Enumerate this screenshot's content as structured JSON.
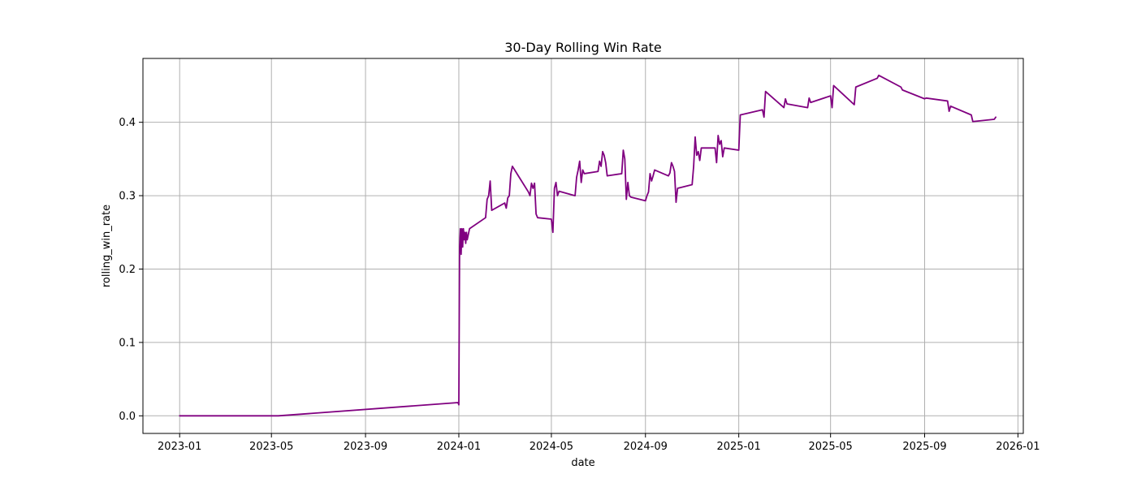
{
  "chart_data": {
    "type": "line",
    "title": "30-Day Rolling Win Rate",
    "xlabel": "date",
    "ylabel": "rolling_win_rate",
    "grid": true,
    "legend": "none",
    "xlim": [
      "2022-11-14",
      "2026-01-08"
    ],
    "ylim": [
      -0.024,
      0.487
    ],
    "x_ticks": [
      "2023-01-01",
      "2023-05-01",
      "2023-09-01",
      "2024-01-01",
      "2024-05-01",
      "2024-09-01",
      "2025-01-01",
      "2025-05-01",
      "2025-09-01",
      "2026-01-01"
    ],
    "x_tick_labels": [
      "2023-01",
      "2023-05",
      "2023-09",
      "2024-01",
      "2024-05",
      "2024-09",
      "2025-01",
      "2025-05",
      "2025-09",
      "2026-01"
    ],
    "y_ticks": [
      0.0,
      0.1,
      0.2,
      0.3,
      0.4
    ],
    "y_tick_labels": [
      "0.0",
      "0.1",
      "0.2",
      "0.3",
      "0.4"
    ],
    "colors": {
      "line": "#800080"
    },
    "series": [
      {
        "x": [
          "2023-01-01",
          "2023-05-10",
          "2023-12-31",
          "2024-01-01",
          "2024-01-02",
          "2024-01-03",
          "2024-01-04",
          "2024-01-05",
          "2024-01-06",
          "2024-01-07",
          "2024-01-08",
          "2024-01-09",
          "2024-01-10",
          "2024-01-11",
          "2024-01-12",
          "2024-01-13",
          "2024-01-15",
          "2024-02-05",
          "2024-02-07",
          "2024-02-09",
          "2024-02-11",
          "2024-02-13",
          "2024-03-01",
          "2024-03-03",
          "2024-03-05",
          "2024-03-07",
          "2024-03-09",
          "2024-03-11",
          "2024-04-01",
          "2024-04-03",
          "2024-04-05",
          "2024-04-07",
          "2024-04-09",
          "2024-04-11",
          "2024-04-13",
          "2024-05-01",
          "2024-05-03",
          "2024-05-05",
          "2024-05-07",
          "2024-05-09",
          "2024-05-11",
          "2024-06-01",
          "2024-06-03",
          "2024-06-05",
          "2024-06-07",
          "2024-06-09",
          "2024-06-11",
          "2024-06-13",
          "2024-07-01",
          "2024-07-03",
          "2024-07-05",
          "2024-07-07",
          "2024-07-09",
          "2024-07-11",
          "2024-07-13",
          "2024-08-01",
          "2024-08-03",
          "2024-08-05",
          "2024-08-07",
          "2024-08-09",
          "2024-08-11",
          "2024-08-13",
          "2024-09-01",
          "2024-09-03",
          "2024-09-05",
          "2024-09-07",
          "2024-09-09",
          "2024-09-11",
          "2024-09-13",
          "2024-10-01",
          "2024-10-03",
          "2024-10-05",
          "2024-10-07",
          "2024-10-09",
          "2024-10-11",
          "2024-10-13",
          "2024-11-01",
          "2024-11-03",
          "2024-11-05",
          "2024-11-07",
          "2024-11-09",
          "2024-11-11",
          "2024-11-13",
          "2024-12-01",
          "2024-12-03",
          "2024-12-05",
          "2024-12-07",
          "2024-12-09",
          "2024-12-11",
          "2024-12-13",
          "2025-01-01",
          "2025-01-03",
          "2025-02-01",
          "2025-02-03",
          "2025-02-05",
          "2025-03-01",
          "2025-03-03",
          "2025-03-05",
          "2025-04-01",
          "2025-04-03",
          "2025-04-05",
          "2025-05-01",
          "2025-05-03",
          "2025-05-05",
          "2025-06-01",
          "2025-06-03",
          "2025-07-01",
          "2025-07-03",
          "2025-08-01",
          "2025-08-03",
          "2025-09-01",
          "2025-09-03",
          "2025-10-01",
          "2025-10-03",
          "2025-10-05",
          "2025-11-01",
          "2025-11-03",
          "2025-12-01",
          "2025-12-03"
        ],
        "y": [
          0.0,
          0.0,
          0.018,
          0.015,
          0.23,
          0.255,
          0.22,
          0.255,
          0.23,
          0.255,
          0.24,
          0.25,
          0.235,
          0.25,
          0.24,
          0.245,
          0.255,
          0.27,
          0.295,
          0.3,
          0.32,
          0.28,
          0.29,
          0.283,
          0.297,
          0.3,
          0.33,
          0.34,
          0.305,
          0.3,
          0.317,
          0.31,
          0.317,
          0.275,
          0.27,
          0.268,
          0.25,
          0.31,
          0.318,
          0.3,
          0.306,
          0.3,
          0.325,
          0.335,
          0.347,
          0.318,
          0.335,
          0.33,
          0.333,
          0.347,
          0.34,
          0.36,
          0.355,
          0.345,
          0.327,
          0.33,
          0.362,
          0.35,
          0.295,
          0.318,
          0.3,
          0.298,
          0.293,
          0.3,
          0.305,
          0.33,
          0.32,
          0.327,
          0.335,
          0.327,
          0.331,
          0.345,
          0.34,
          0.333,
          0.291,
          0.31,
          0.315,
          0.34,
          0.38,
          0.355,
          0.36,
          0.348,
          0.365,
          0.365,
          0.345,
          0.382,
          0.37,
          0.375,
          0.353,
          0.365,
          0.362,
          0.41,
          0.417,
          0.407,
          0.442,
          0.42,
          0.432,
          0.425,
          0.42,
          0.433,
          0.427,
          0.436,
          0.42,
          0.45,
          0.424,
          0.448,
          0.46,
          0.464,
          0.448,
          0.444,
          0.432,
          0.433,
          0.429,
          0.415,
          0.422,
          0.41,
          0.401,
          0.404,
          0.407
        ]
      }
    ]
  }
}
